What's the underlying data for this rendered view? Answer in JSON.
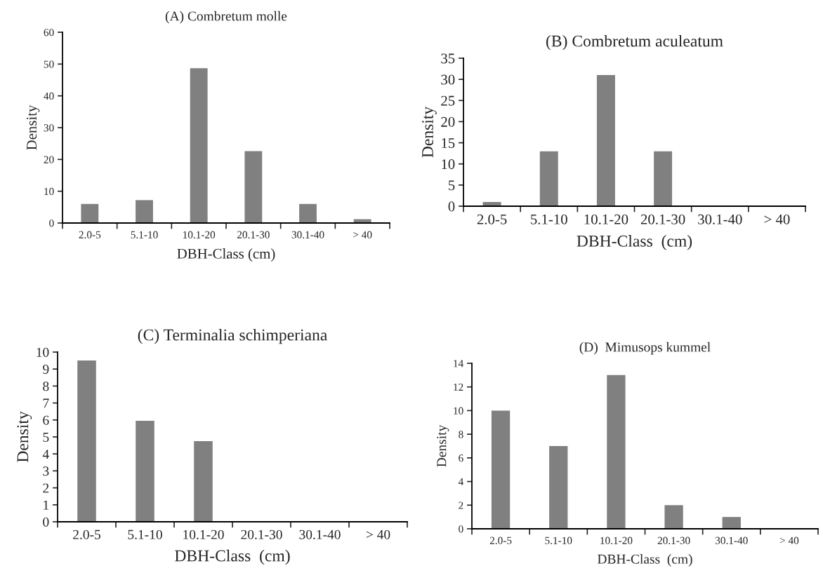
{
  "chart_data": [
    {
      "type": "bar",
      "title": "(A) Combretum molle",
      "xlabel": "DBH-Class (cm)",
      "ylabel": "Density",
      "categories": [
        "2.0-5",
        "5.1-10",
        "10.1-20",
        "20.1-30",
        "30.1-40",
        "> 40"
      ],
      "values": [
        6,
        7.2,
        48.7,
        22.6,
        6,
        1.2
      ],
      "color": "#808080",
      "ylim": [
        0,
        60
      ],
      "yticks": [
        0,
        10,
        20,
        30,
        40,
        50,
        60
      ]
    },
    {
      "type": "bar",
      "title": "(B) Combretum aculeatum",
      "xlabel": "DBH-Class  (cm)",
      "ylabel": "Density",
      "categories": [
        "2.0-5",
        "5.1-10",
        "10.1-20",
        "20.1-30",
        "30.1-40",
        "> 40"
      ],
      "values": [
        1,
        13,
        31,
        13,
        0,
        0
      ],
      "color": "#808080",
      "ylim": [
        0,
        35
      ],
      "yticks": [
        0,
        5,
        10,
        15,
        20,
        25,
        30,
        35
      ]
    },
    {
      "type": "bar",
      "title": "(C) Terminalia schimperiana",
      "xlabel": "DBH-Class  (cm)",
      "ylabel": "Density",
      "categories": [
        "2.0-5",
        "5.1-10",
        "10.1-20",
        "20.1-30",
        "30.1-40",
        "> 40"
      ],
      "values": [
        9.5,
        5.95,
        4.75,
        0,
        0,
        0
      ],
      "color": "#808080",
      "ylim": [
        0,
        10
      ],
      "yticks": [
        0,
        1,
        2,
        3,
        4,
        5,
        6,
        7,
        8,
        9,
        10
      ]
    },
    {
      "type": "bar",
      "title": "(D)  Mimusops kummel",
      "xlabel": "DBH-Class  (cm)",
      "ylabel": "Density",
      "categories": [
        "2.0-5",
        "5.1-10",
        "10.1-20",
        "20.1-30",
        "30.1-40",
        "> 40"
      ],
      "values": [
        10,
        7,
        13,
        2,
        1,
        0
      ],
      "color": "#808080",
      "ylim": [
        0,
        14
      ],
      "yticks": [
        0,
        2,
        4,
        6,
        8,
        10,
        12,
        14
      ]
    }
  ]
}
